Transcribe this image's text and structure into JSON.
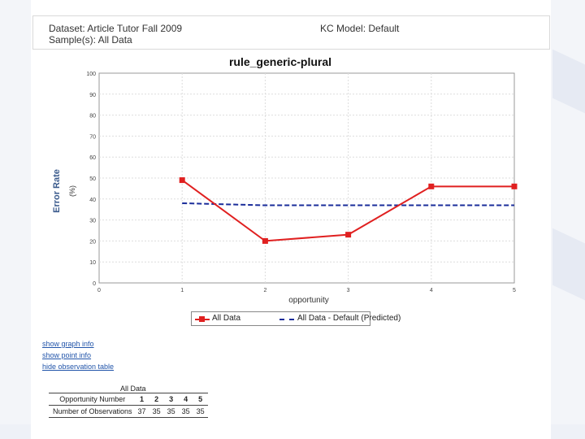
{
  "header": {
    "dataset": "Dataset: Article Tutor Fall 2009",
    "samples": "Sample(s): All Data",
    "kc_model": "KC Model: Default"
  },
  "chart_data": {
    "type": "line",
    "title": "rule_generic-plural",
    "xlabel": "opportunity",
    "ylabel": "Error Rate",
    "yunit": "(%)",
    "xlim": [
      0,
      5
    ],
    "ylim": [
      0,
      100
    ],
    "x_ticks": [
      "0",
      "1",
      "2",
      "3",
      "4",
      "5"
    ],
    "y_ticks": [
      "0",
      "10",
      "20",
      "30",
      "40",
      "50",
      "60",
      "70",
      "80",
      "90",
      "100"
    ],
    "grid": true,
    "legend_position": "bottom",
    "series": [
      {
        "name": "All Data",
        "color": "#e02020",
        "style": "solid-square-markers",
        "x": [
          1,
          2,
          3,
          4,
          5
        ],
        "y": [
          49,
          20,
          23,
          46,
          46
        ]
      },
      {
        "name": "All Data - Default (Predicted)",
        "color": "#1a2c9a",
        "style": "dashed",
        "x": [
          1,
          2,
          3,
          4,
          5
        ],
        "y": [
          38,
          37,
          37,
          37,
          37
        ]
      }
    ]
  },
  "links": {
    "graph_info": "show graph info",
    "point_info": "show point info",
    "observation_table": "hide observation table"
  },
  "obs_table": {
    "caption": "All Data",
    "row1_label": "Opportunity Number",
    "row2_label": "Number of Observations",
    "opportunities": [
      "1",
      "2",
      "3",
      "4",
      "5"
    ],
    "observations": [
      "37",
      "35",
      "35",
      "35",
      "35"
    ]
  }
}
